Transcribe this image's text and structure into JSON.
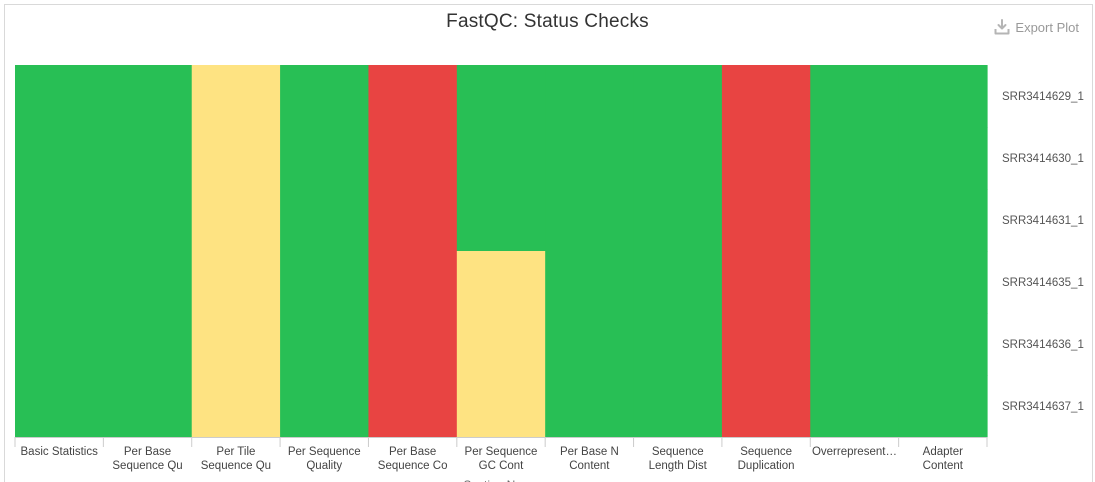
{
  "header": {
    "title": "FastQC: Status Checks",
    "export_label": "Export Plot",
    "export_icon": "download-icon"
  },
  "chart_data": {
    "type": "heatmap",
    "title": "FastQC: Status Checks",
    "xlabel": "Section Name",
    "ylabel": "",
    "categories": [
      [
        "Basic Statistics"
      ],
      [
        "Per Base",
        "Sequence Qu"
      ],
      [
        "Per Tile",
        "Sequence Qu"
      ],
      [
        "Per Sequence",
        "Quality"
      ],
      [
        "Per Base",
        "Sequence Co"
      ],
      [
        "Per Sequence",
        "GC Cont"
      ],
      [
        "Per Base N",
        "Content"
      ],
      [
        "Sequence",
        "Length Dist"
      ],
      [
        "Sequence",
        "Duplication"
      ],
      [
        "Overrepresent…"
      ],
      [
        "Adapter",
        "Content"
      ]
    ],
    "samples": [
      "SRR3414629_1",
      "SRR3414630_1",
      "SRR3414631_1",
      "SRR3414635_1",
      "SRR3414636_1",
      "SRR3414637_1"
    ],
    "status_colors": {
      "pass": "#28bf55",
      "warn": "#fee382",
      "fail": "#e84442"
    },
    "values": [
      [
        "pass",
        "pass",
        "warn",
        "pass",
        "fail",
        "pass",
        "pass",
        "pass",
        "fail",
        "pass",
        "pass"
      ],
      [
        "pass",
        "pass",
        "warn",
        "pass",
        "fail",
        "pass",
        "pass",
        "pass",
        "fail",
        "pass",
        "pass"
      ],
      [
        "pass",
        "pass",
        "warn",
        "pass",
        "fail",
        "pass",
        "pass",
        "pass",
        "fail",
        "pass",
        "pass"
      ],
      [
        "pass",
        "pass",
        "warn",
        "pass",
        "fail",
        "warn",
        "pass",
        "pass",
        "fail",
        "pass",
        "pass"
      ],
      [
        "pass",
        "pass",
        "warn",
        "pass",
        "fail",
        "warn",
        "pass",
        "pass",
        "fail",
        "pass",
        "pass"
      ],
      [
        "pass",
        "pass",
        "warn",
        "pass",
        "fail",
        "warn",
        "pass",
        "pass",
        "fail",
        "pass",
        "pass"
      ]
    ],
    "grid": false,
    "legend": "none"
  }
}
